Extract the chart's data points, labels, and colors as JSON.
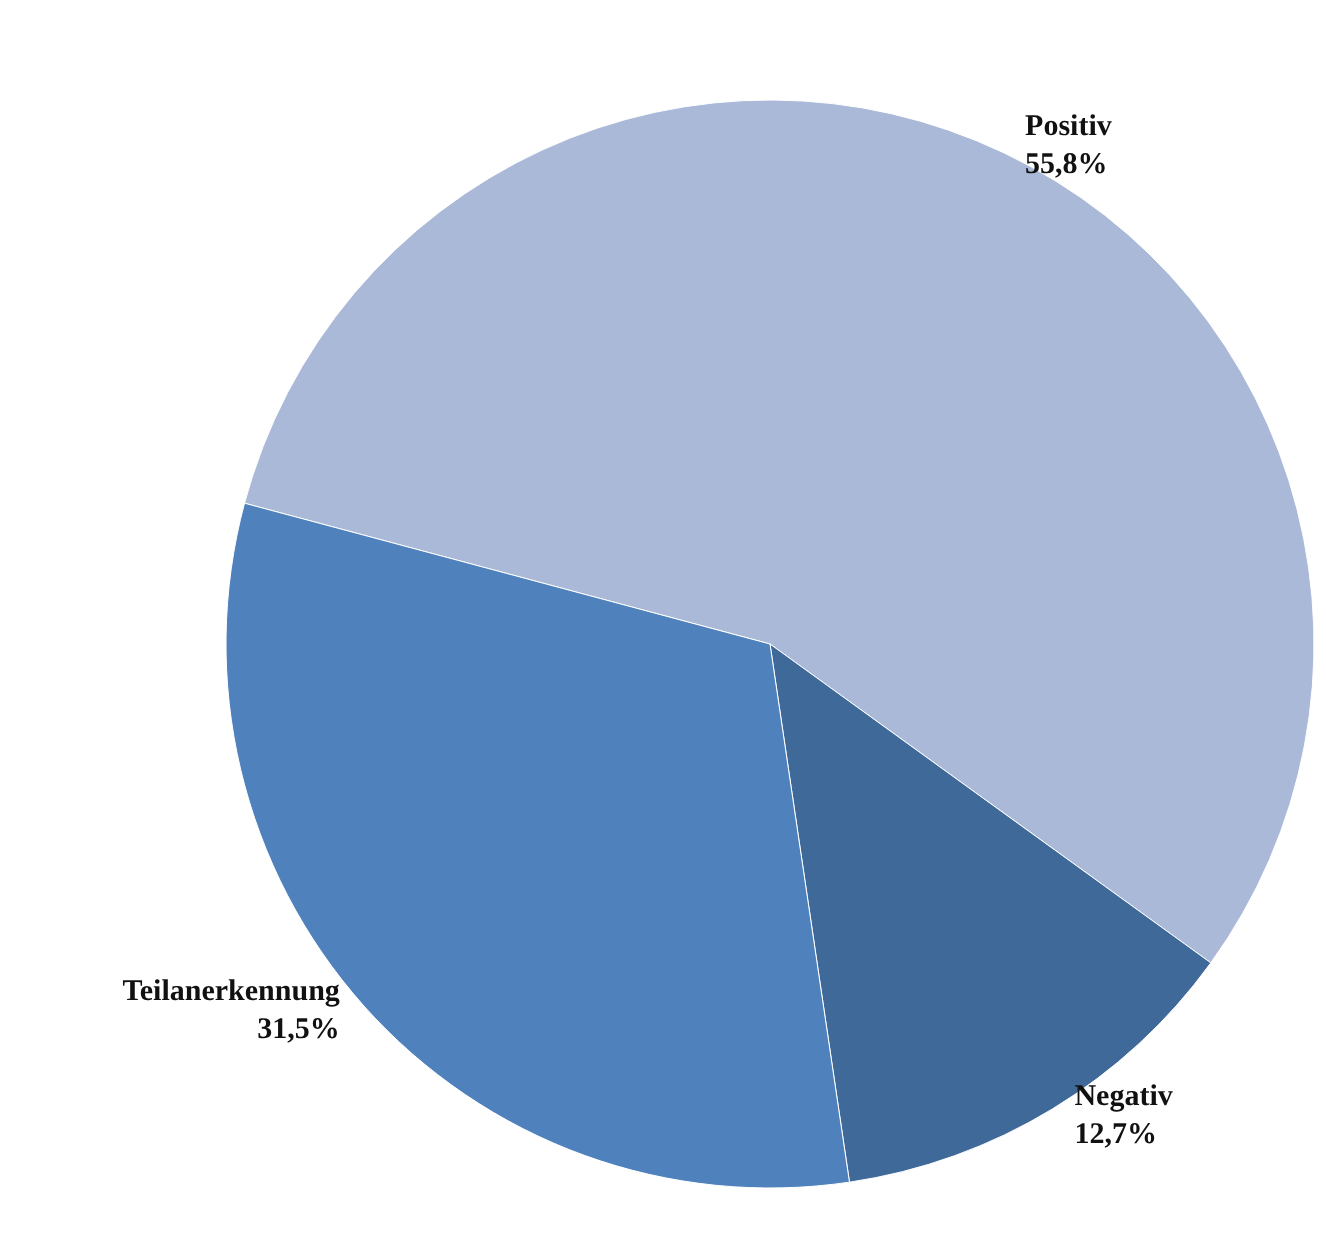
{
  "chart_data": {
    "type": "pie",
    "categories": [
      "Positiv",
      "Negativ",
      "Teilanerkennung"
    ],
    "values": [
      55.8,
      12.7,
      31.5
    ],
    "colors": [
      "#aab9d8",
      "#3e6999",
      "#4f81bd"
    ],
    "value_labels": [
      "55,8%",
      "12,7%",
      "31,5%"
    ],
    "legend": false
  }
}
